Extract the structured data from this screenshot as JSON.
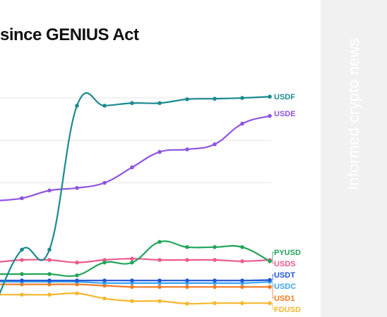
{
  "title": "since GENIUS Act",
  "watermark": "Informed crypto news",
  "chart_data": {
    "type": "line",
    "title": "since GENIUS Act",
    "x": [
      0,
      1,
      2,
      3,
      4,
      5,
      6,
      7,
      8,
      9,
      10
    ],
    "ylim": [
      0,
      100
    ],
    "grid": true,
    "series": [
      {
        "name": "USDF",
        "color": "#1a8a8f",
        "values": [
          2,
          24,
          24,
          80,
          80,
          81,
          81,
          82.5,
          82.7,
          83,
          83.5
        ]
      },
      {
        "name": "USDE",
        "color": "#8e54e0",
        "values": [
          43,
          44,
          47,
          48,
          50,
          56,
          62,
          63,
          65,
          73,
          76
        ]
      },
      {
        "name": "PYUSD",
        "color": "#22a55a",
        "values": [
          14.5,
          14.5,
          14.5,
          14,
          19,
          19,
          27,
          25,
          25,
          25,
          19.5
        ]
      },
      {
        "name": "USDS",
        "color": "#ec5a8a",
        "values": [
          19,
          20,
          20,
          19,
          20,
          20.5,
          20,
          20,
          20,
          19.5,
          20
        ]
      },
      {
        "name": "USDT",
        "color": "#1f55d6",
        "values": [
          12,
          12,
          12,
          12,
          12,
          12,
          12,
          12,
          12,
          12,
          12.2
        ]
      },
      {
        "name": "USDC",
        "color": "#3ba3f2",
        "values": [
          11.5,
          11.5,
          11.5,
          11.5,
          11,
          11,
          11,
          11,
          11,
          11,
          11.5
        ]
      },
      {
        "name": "USD1",
        "color": "#f47a20",
        "values": [
          10.5,
          10.5,
          10.5,
          10.5,
          10,
          9.5,
          9.5,
          9.5,
          9.5,
          9.5,
          9.5
        ]
      },
      {
        "name": "FDUSD",
        "color": "#f5b72d",
        "values": [
          6.5,
          6.5,
          6.5,
          7,
          5,
          4,
          4,
          3,
          3.2,
          3.2,
          3.2
        ]
      }
    ]
  }
}
